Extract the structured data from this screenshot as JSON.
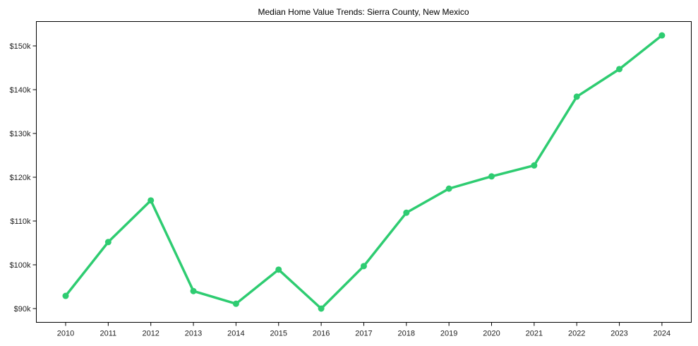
{
  "chart_data": {
    "type": "line",
    "title": "Median Home Value Trends: Sierra County, New Mexico",
    "xlabel": "",
    "ylabel": "",
    "categories": [
      "2010",
      "2011",
      "2012",
      "2013",
      "2014",
      "2015",
      "2016",
      "2017",
      "2018",
      "2019",
      "2020",
      "2021",
      "2022",
      "2023",
      "2024"
    ],
    "series": [
      {
        "name": "Median Home Value",
        "values": [
          92900,
          105200,
          114700,
          94000,
          91100,
          98900,
          90000,
          99700,
          111900,
          117400,
          120200,
          122700,
          138400,
          144700,
          152400
        ],
        "color": "#2ecc71",
        "marker": "circle"
      }
    ],
    "yticks": [
      90000,
      100000,
      110000,
      120000,
      130000,
      140000,
      150000
    ],
    "ytick_labels": [
      "$90k",
      "$100k",
      "$110k",
      "$120k",
      "$130k",
      "$140k",
      "$150k"
    ],
    "ylim": [
      87000,
      155600
    ],
    "grid": false,
    "legend": null
  }
}
